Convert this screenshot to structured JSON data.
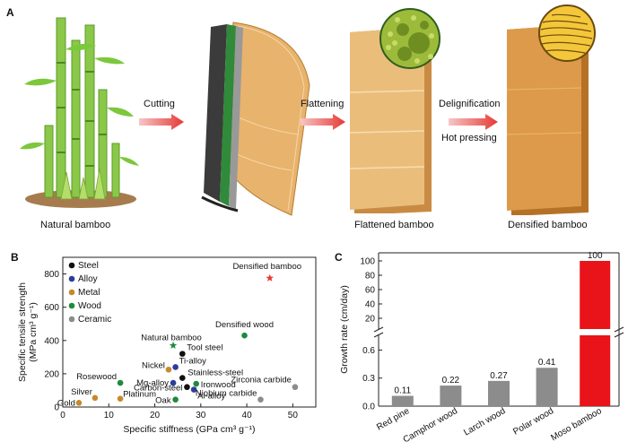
{
  "panel_a": {
    "letter": "A",
    "captions": {
      "natural": "Natural bamboo",
      "flattened": "Flattened bamboo",
      "densified": "Densified bamboo"
    },
    "arrows": {
      "cutting": "Cutting",
      "flattening": "Flattening",
      "delignification": "Delignification",
      "hot_pressing": "Hot pressing"
    },
    "colors": {
      "arrow": "#e53935",
      "bamboo_green": "#6bbf3a",
      "board_light": "#e9b877",
      "board_dark": "#d9913f"
    }
  },
  "chart_data": [
    {
      "panel": "B",
      "type": "scatter",
      "title": "",
      "xlabel": "Specific stiffness (GPa cm³ g⁻¹)",
      "ylabel_line1": "Specific tensile strength",
      "ylabel_line2": "(MPa cm³ g⁻¹)",
      "xlim": [
        0,
        55
      ],
      "x_ticks": [
        "0",
        "10",
        "20",
        "30",
        "40",
        "50"
      ],
      "y_ticks": [
        "0",
        "200",
        "400",
        "600",
        "800"
      ],
      "ylim": [
        0,
        900
      ],
      "legend": [
        {
          "name": "Steel",
          "color": "#111111"
        },
        {
          "name": "Alloy",
          "color": "#2b3d9b"
        },
        {
          "name": "Metal",
          "color": "#c68a2c"
        },
        {
          "name": "Wood",
          "color": "#1e8a3c"
        },
        {
          "name": "Ceramic",
          "color": "#8c8c8c"
        }
      ],
      "legend_position": "top-left",
      "points": [
        {
          "label": "Densified bamboo",
          "x": 45,
          "y": 775,
          "group": "star",
          "color": "#e53935"
        },
        {
          "label": "Densified wood",
          "x": 39.5,
          "y": 430,
          "group": "Wood",
          "color": "#1e8a3c"
        },
        {
          "label": "Natural bamboo",
          "x": 24,
          "y": 370,
          "group": "star",
          "color": "#1e8a3c"
        },
        {
          "label": "Tool steel",
          "x": 26,
          "y": 320,
          "group": "Steel",
          "color": "#111111"
        },
        {
          "label": "Ti-alloy",
          "x": 24.5,
          "y": 240,
          "group": "Alloy",
          "color": "#2b3d9b"
        },
        {
          "label": "Nickel",
          "x": 23,
          "y": 225,
          "group": "Metal",
          "color": "#c68a2c"
        },
        {
          "label": "Stainless-steel",
          "x": 26,
          "y": 175,
          "group": "Steel",
          "color": "#111111"
        },
        {
          "label": "Mg-alloy",
          "x": 24,
          "y": 145,
          "group": "Alloy",
          "color": "#2b3d9b"
        },
        {
          "label": "Ironwood",
          "x": 29,
          "y": 140,
          "group": "Wood",
          "color": "#1e8a3c"
        },
        {
          "label": "Carbon-steel",
          "x": 27,
          "y": 120,
          "group": "Steel",
          "color": "#111111"
        },
        {
          "label": "Al-alloy",
          "x": 28.5,
          "y": 105,
          "group": "Alloy",
          "color": "#2b3d9b"
        },
        {
          "label": "Rosewood",
          "x": 12.5,
          "y": 145,
          "group": "Wood",
          "color": "#1e8a3c"
        },
        {
          "label": "Oak",
          "x": 24.5,
          "y": 45,
          "group": "Wood",
          "color": "#1e8a3c"
        },
        {
          "label": "Silver",
          "x": 7,
          "y": 55,
          "group": "Metal",
          "color": "#c68a2c"
        },
        {
          "label": "Platinum",
          "x": 12.5,
          "y": 50,
          "group": "Metal",
          "color": "#c68a2c"
        },
        {
          "label": "Gold",
          "x": 3.5,
          "y": 25,
          "group": "Metal",
          "color": "#c68a2c"
        },
        {
          "label": "Zirconia carbide",
          "x": 50.5,
          "y": 120,
          "group": "Ceramic",
          "color": "#8c8c8c"
        },
        {
          "label": "Niobium carbide",
          "x": 43,
          "y": 45,
          "group": "Ceramic",
          "color": "#8c8c8c"
        }
      ]
    },
    {
      "panel": "C",
      "type": "bar",
      "title": "",
      "xlabel": "",
      "ylabel": "Growth rate (cm/day)",
      "axis_break": true,
      "y_ticks_lower": [
        "0.0",
        "0.3",
        "0.6"
      ],
      "y_ticks_upper": [
        "20",
        "40",
        "60",
        "80",
        "100"
      ],
      "categories": [
        "Red pine",
        "Camphor wood",
        "Larch wood",
        "Polar wood",
        "Moso bamboo"
      ],
      "values": [
        0.11,
        0.22,
        0.27,
        0.41,
        100
      ],
      "value_labels": [
        "0.11",
        "0.22",
        "0.27",
        "0.41",
        "100"
      ],
      "colors": [
        "#8c8c8c",
        "#8c8c8c",
        "#8c8c8c",
        "#8c8c8c",
        "#e8141a"
      ]
    }
  ]
}
